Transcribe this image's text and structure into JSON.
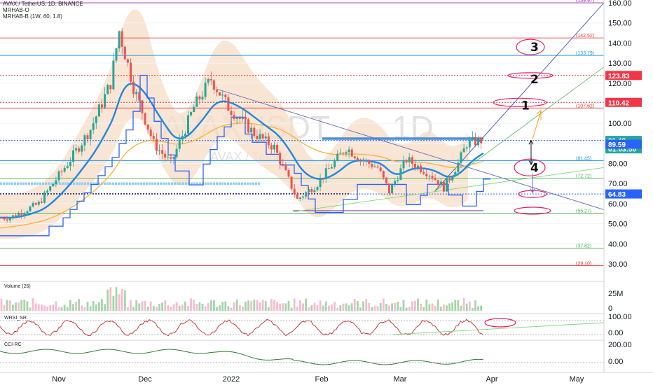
{
  "header": {
    "title": "AVAX / TetherUS, 1D, BINANCE",
    "indicator_1": "MRHAB-O",
    "indicator_2": "MRHAB-B (1W, 60, 1.8)"
  },
  "watermark": {
    "symbol": "AVAXUSDT",
    "timeframe": "1D",
    "subtitle": "AVAX / Tether"
  },
  "colors": {
    "up_candle": "#26a69a",
    "down_candle": "#ef5350",
    "band_fill": "#f7dcc4",
    "fib_red": "#e53935",
    "fib_blue": "#2196f3",
    "fib_green": "#4caf50",
    "annotation": "#e91e63",
    "ema_blue": "#1e88e5",
    "ema_yellow": "#f9b233"
  },
  "chart_data": {
    "type": "candlestick",
    "symbol": "AVAX / TetherUS",
    "timeframe": "1D",
    "exchange": "BINANCE",
    "y_axis": {
      "min": 25,
      "max": 162,
      "ticks": [
        30.0,
        40.0,
        50.0,
        60.0,
        70.0,
        80.0,
        90.0,
        100.0,
        110.0,
        120.0,
        130.0,
        140.0,
        150.0,
        160.0
      ]
    },
    "x_axis": {
      "labels": [
        "Nov",
        "Dec",
        "2022",
        "Feb",
        "Mar",
        "Apr",
        "May"
      ]
    },
    "price_path": [
      [
        "2021-10-15",
        53
      ],
      [
        "2021-10-25",
        60
      ],
      [
        "2021-11-05",
        82
      ],
      [
        "2021-11-12",
        97
      ],
      [
        "2021-11-19",
        120
      ],
      [
        "2021-11-22",
        146
      ],
      [
        "2021-11-27",
        118
      ],
      [
        "2021-12-04",
        90
      ],
      [
        "2021-12-10",
        80
      ],
      [
        "2021-12-18",
        108
      ],
      [
        "2021-12-24",
        122
      ],
      [
        "2021-12-30",
        108
      ],
      [
        "2022-01-08",
        95
      ],
      [
        "2022-01-15",
        88
      ],
      [
        "2022-01-23",
        62
      ],
      [
        "2022-01-30",
        70
      ],
      [
        "2022-02-09",
        88
      ],
      [
        "2022-02-14",
        82
      ],
      [
        "2022-02-20",
        78
      ],
      [
        "2022-02-24",
        66
      ],
      [
        "2022-03-02",
        82
      ],
      [
        "2022-03-10",
        75
      ],
      [
        "2022-03-15",
        68
      ],
      [
        "2022-03-20",
        80
      ],
      [
        "2022-03-23",
        90
      ],
      [
        "2022-03-28",
        91.48
      ]
    ],
    "levels": [
      {
        "label": "(159.97)",
        "value": 159.97,
        "color": "#9c27b0",
        "style": "solid"
      },
      {
        "label": "(142.52)",
        "value": 142.52,
        "color": "#e53935",
        "style": "solid"
      },
      {
        "label": "(133.79)",
        "value": 133.79,
        "color": "#2196f3",
        "style": "solid"
      },
      {
        "label": "(107.62)",
        "value": 107.62,
        "color": "#e53935",
        "style": "solid"
      },
      {
        "label": "(81.45)",
        "value": 81.45,
        "color": "#2196f3",
        "style": "solid"
      },
      {
        "label": "(72.72)",
        "value": 72.72,
        "color": "#4caf50",
        "style": "solid"
      },
      {
        "label": "(55.27)",
        "value": 55.27,
        "color": "#4caf50",
        "style": "solid"
      },
      {
        "label": "(37.82)",
        "value": 37.82,
        "color": "#4caf50",
        "style": "solid"
      },
      {
        "label": "(29.10)",
        "value": 29.1,
        "color": "#e53935",
        "style": "solid"
      }
    ],
    "price_tags": [
      {
        "label": "123.83",
        "value": 123.83,
        "color": "#f23645"
      },
      {
        "label": "110.42",
        "value": 110.42,
        "color": "#f23645"
      },
      {
        "label": "91.48",
        "value": 91.48,
        "color": "#26a69a"
      },
      {
        "label": "01:03:50",
        "value": 86.5,
        "color": "#26a69a"
      },
      {
        "label": "89.59",
        "value": 89.59,
        "color": "#2962ff"
      },
      {
        "label": "64.83",
        "value": 64.83,
        "color": "#2962ff"
      }
    ],
    "wave_labels": [
      {
        "label": "1",
        "date": "2022-04-10",
        "value": 109
      },
      {
        "label": "2",
        "date": "2022-04-10",
        "value": 122
      },
      {
        "label": "3",
        "date": "2022-04-10",
        "value": 138
      },
      {
        "label": "4",
        "date": "2022-04-10",
        "value": 78
      }
    ],
    "panes": [
      {
        "name": "Volume (26)",
        "ticks": [
          "25M",
          "0"
        ]
      },
      {
        "name": "WRSI_SR",
        "ticks": [
          "100.00",
          "0.00"
        ]
      },
      {
        "name": "CCI-RC",
        "ticks": [
          "200.00",
          "0.00"
        ]
      }
    ]
  }
}
